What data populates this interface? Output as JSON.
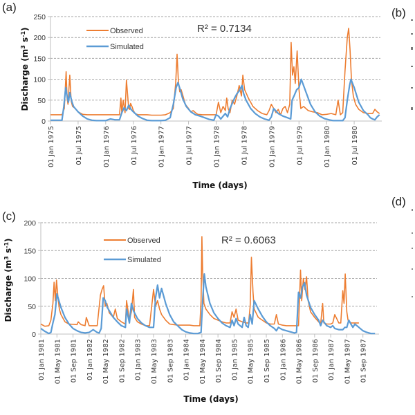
{
  "figure": {
    "panels": [
      "(a)",
      "(b)",
      "(c)",
      "(d)"
    ]
  },
  "chart_data": [
    {
      "id": "a",
      "type": "line",
      "panel_label": "(a)",
      "title": "",
      "xlabel": "Time (days)",
      "ylabel": "Discharge (m³ s⁻¹)",
      "ylabel_parts": {
        "main": "Discharge (m",
        "sup1": "3",
        "mid": " s",
        "sup2": "-1",
        "end": ")"
      },
      "ylim": [
        0,
        250
      ],
      "yticks": [
        0,
        50,
        100,
        150,
        200,
        250
      ],
      "xlim_month_index": [
        0,
        71.5
      ],
      "xtick_labels": [
        "01 Jan 1975",
        "01 Jul 1975",
        "01 Jan 1976",
        "01 Jul 1976",
        "01 Jan 1977",
        "01 Jul 1977",
        "01 Jan 1978",
        "01 Jul 1978",
        "01 Jan 1979",
        "01 Jul 1979",
        "01 Jan 1980",
        "01 Jul 1980"
      ],
      "xtick_month_index": [
        0,
        6,
        12,
        18,
        24,
        30,
        36,
        42,
        48,
        54,
        60,
        66
      ],
      "grid": true,
      "legend": {
        "placement": "top-left",
        "entries": [
          "Observed",
          "Simulated"
        ]
      },
      "annotation": "R² = 0.7134",
      "series": [
        {
          "name": "Observed",
          "color": "#ed7d31",
          "x_month": [
            0,
            2.5,
            3.0,
            3.4,
            3.6,
            3.8,
            4.2,
            4.5,
            4.8,
            5.4,
            6,
            7,
            8,
            9,
            10,
            12,
            13,
            14,
            15,
            15.3,
            15.5,
            15.8,
            16.2,
            16.5,
            17,
            17.2,
            17.4,
            17.7,
            18,
            18.4,
            19,
            20,
            21,
            22,
            24,
            25,
            26,
            26.7,
            27.2,
            27.5,
            27.8,
            28.1,
            28.4,
            28.8,
            29.3,
            30,
            30.5,
            31,
            31.5,
            32,
            33,
            34,
            35,
            36,
            36.5,
            37,
            37.5,
            38,
            38.3,
            38.6,
            39,
            39.5,
            40,
            40.5,
            41,
            41.5,
            41.8,
            42.2,
            43,
            44,
            45,
            46,
            47,
            47.5,
            48,
            48.5,
            49,
            49.5,
            50,
            50.5,
            51,
            51.5,
            52,
            52.3,
            52.6,
            52.9,
            53.2,
            53.6,
            54,
            54.4,
            55,
            56,
            57,
            58,
            59,
            60,
            61,
            62,
            62.5,
            63,
            63.5,
            64,
            64.5,
            64.8,
            65.1,
            65.4,
            65.8,
            66.3,
            67,
            68,
            69,
            70,
            70.5,
            71,
            71.5
          ],
          "values": [
            15,
            15,
            30,
            118,
            55,
            40,
            110,
            48,
            35,
            30,
            22,
            16,
            15,
            15,
            15,
            15,
            15,
            15,
            15,
            55,
            18,
            50,
            20,
            98,
            30,
            28,
            42,
            35,
            25,
            18,
            15,
            15,
            15,
            14,
            14,
            15,
            20,
            30,
            90,
            160,
            95,
            70,
            75,
            60,
            40,
            30,
            22,
            25,
            20,
            16,
            15,
            15,
            15,
            15,
            45,
            20,
            35,
            25,
            55,
            30,
            20,
            50,
            40,
            60,
            85,
            60,
            110,
            75,
            55,
            35,
            25,
            18,
            15,
            25,
            40,
            30,
            20,
            28,
            15,
            30,
            35,
            20,
            40,
            188,
            110,
            130,
            90,
            168,
            75,
            30,
            35,
            25,
            22,
            20,
            15,
            16,
            18,
            15,
            50,
            15,
            20,
            120,
            200,
            222,
            170,
            100,
            60,
            40,
            28,
            20,
            18,
            18,
            28,
            22,
            18
          ]
        },
        {
          "name": "Simulated",
          "color": "#5b9bd5",
          "x_month": [
            0,
            2.5,
            2.9,
            3.3,
            3.6,
            3.9,
            4.2,
            4.6,
            5,
            6,
            7,
            8,
            9,
            10,
            11,
            12,
            13,
            14,
            15,
            15.5,
            16,
            16.5,
            17,
            17.5,
            18,
            19,
            20,
            21,
            22,
            24,
            25,
            26,
            26.7,
            27.3,
            27.7,
            28.2,
            28.7,
            29.5,
            30.5,
            31.5,
            32.5,
            33.5,
            34.5,
            35.5,
            36,
            36.5,
            37,
            38,
            38.5,
            39,
            40,
            40.5,
            41,
            41.6,
            42,
            42.5,
            43.5,
            44.5,
            45.5,
            46.5,
            47.5,
            48,
            48.5,
            49.5,
            50.5,
            51.5,
            52.2,
            52.5,
            53,
            53.5,
            54,
            54.5,
            55.5,
            56.5,
            57.5,
            58.5,
            59.5,
            60.5,
            61.5,
            62.5,
            63.5,
            64,
            64.5,
            65,
            65.3,
            66,
            67,
            68,
            69,
            69.5,
            70,
            70.5,
            71,
            71.5
          ],
          "values": [
            2,
            2,
            35,
            80,
            60,
            45,
            68,
            48,
            35,
            22,
            12,
            5,
            2,
            1,
            1,
            1,
            5,
            3,
            3,
            20,
            32,
            25,
            38,
            28,
            22,
            12,
            6,
            2,
            1,
            1,
            2,
            8,
            40,
            80,
            92,
            75,
            55,
            35,
            22,
            15,
            12,
            8,
            4,
            2,
            15,
            12,
            5,
            18,
            10,
            30,
            55,
            65,
            72,
            85,
            65,
            50,
            30,
            18,
            10,
            5,
            2,
            10,
            30,
            18,
            12,
            8,
            5,
            50,
            62,
            75,
            80,
            100,
            70,
            40,
            22,
            12,
            6,
            3,
            1,
            1,
            1,
            8,
            50,
            85,
            100,
            80,
            45,
            25,
            15,
            8,
            5,
            3,
            10,
            15,
            10,
            12
          ]
        }
      ]
    },
    {
      "id": "c",
      "type": "line",
      "panel_label": "(c)",
      "title": "",
      "xlabel": "Time (days)",
      "ylabel": "Discharge (m³ s⁻¹)",
      "ylabel_parts": {
        "main": "Discharge (m",
        "sup1": "3",
        "mid": " s",
        "sup2": "-1",
        "end": ")"
      },
      "ylim": [
        0,
        200
      ],
      "yticks": [
        0,
        50,
        100,
        150,
        200
      ],
      "xlim_month_index": [
        0,
        84
      ],
      "xtick_labels": [
        "01 Jan 1981",
        "01 May 1981",
        "01 Sep 1981",
        "01 Jan 1982",
        "01 May 1982",
        "01 Sep 1982",
        "01 Jan 1983",
        "01 May 1983",
        "01 Sep 1983",
        "01 Jan 1984",
        "01 May 1984",
        "01 Sep 1984",
        "01 Jan 1985",
        "01 May 1985",
        "01 Sep 1985",
        "01 Jan 1986",
        "01 May 1986",
        "01 Sep 1986",
        "01 Jan 1987",
        "01 May 1987",
        "01 Sep 1987"
      ],
      "xtick_month_index": [
        0,
        4,
        8,
        12,
        16,
        20,
        24,
        28,
        32,
        36,
        40,
        44,
        48,
        52,
        56,
        60,
        64,
        68,
        72,
        76,
        80
      ],
      "grid": true,
      "legend": {
        "placement": "top-left",
        "entries": [
          "Observed",
          "Simulated"
        ]
      },
      "annotation": "R² = 0.6063",
      "series": [
        {
          "name": "Observed",
          "color": "#ed7d31",
          "x_month": [
            0,
            1,
            2,
            2.5,
            3.0,
            3.3,
            3.6,
            3.9,
            4.2,
            4.6,
            5,
            6,
            7,
            9,
            9.3,
            10,
            11,
            11.3,
            12,
            14,
            14.8,
            15.2,
            15.6,
            16,
            16.4,
            17,
            18,
            18.5,
            19,
            20,
            21,
            21.3,
            22,
            22.5,
            23,
            23.3,
            24,
            25,
            26,
            27,
            28,
            28.5,
            29,
            29.5,
            30,
            31,
            32,
            33,
            34,
            35,
            36,
            37,
            38,
            39.5,
            39.8,
            40,
            40.2,
            40.5,
            41,
            42,
            43,
            44,
            45,
            46,
            47,
            47.5,
            48,
            48.5,
            49,
            50,
            51,
            51.3,
            51.6,
            52,
            52.3,
            52.7,
            53,
            54,
            55,
            56,
            57,
            58,
            58.5,
            59,
            60,
            61,
            62,
            63,
            64,
            64.5,
            64.8,
            65.2,
            65.6,
            66,
            66.4,
            67,
            68,
            69,
            69.5,
            70,
            70.3,
            71,
            72,
            72.5,
            73,
            74,
            74.5,
            75,
            75.3,
            75.6,
            76,
            76.3,
            77,
            78,
            79
          ],
          "values": [
            18,
            14,
            15,
            25,
            55,
            93,
            60,
            97,
            70,
            45,
            35,
            22,
            18,
            17,
            22,
            17,
            15,
            30,
            15,
            15,
            70,
            80,
            87,
            50,
            55,
            38,
            30,
            45,
            28,
            22,
            18,
            60,
            25,
            40,
            80,
            30,
            22,
            18,
            15,
            15,
            80,
            50,
            60,
            45,
            35,
            25,
            18,
            17,
            16,
            16,
            16,
            16,
            15,
            15,
            60,
            175,
            110,
            55,
            45,
            35,
            28,
            25,
            22,
            20,
            20,
            40,
            30,
            45,
            25,
            22,
            20,
            20,
            20,
            50,
            138,
            75,
            45,
            30,
            25,
            20,
            18,
            18,
            35,
            18,
            16,
            15,
            15,
            15,
            15,
            115,
            60,
            100,
            80,
            103,
            60,
            40,
            30,
            22,
            18,
            55,
            20,
            18,
            18,
            20,
            35,
            20,
            20,
            78,
            55,
            108,
            40,
            25,
            20,
            20,
            20,
            20
          ]
        },
        {
          "name": "Simulated",
          "color": "#5b9bd5",
          "x_month": [
            0,
            1,
            2,
            2.5,
            3,
            3.5,
            4,
            4.5,
            5,
            6,
            7,
            8,
            9,
            10,
            11,
            12,
            13,
            14,
            14.5,
            15,
            15.5,
            16,
            16.5,
            17,
            18,
            19,
            20,
            21,
            21.3,
            22,
            22.5,
            23,
            23.5,
            24,
            25,
            26,
            27,
            28,
            28.5,
            29,
            29.5,
            30,
            31,
            32,
            33,
            34,
            35,
            36,
            37,
            38,
            39,
            39.8,
            40.2,
            40.6,
            41,
            42,
            43,
            44,
            45,
            46,
            47,
            47.5,
            48,
            48.5,
            49,
            50,
            50.5,
            51,
            51.5,
            52,
            52.5,
            53,
            54,
            55,
            56,
            57,
            58,
            58.5,
            59,
            60,
            61,
            62,
            63,
            63.5,
            64,
            64.5,
            65,
            65.5,
            66,
            67,
            68,
            69,
            69.5,
            70,
            71,
            72,
            72.5,
            73,
            74,
            75,
            75.5,
            76,
            76.5,
            77,
            77.5,
            78,
            79,
            80,
            81,
            82,
            83
          ],
          "values": [
            10,
            5,
            1,
            3,
            20,
            35,
            72,
            60,
            48,
            30,
            18,
            10,
            6,
            3,
            2,
            3,
            8,
            3,
            2,
            10,
            65,
            60,
            48,
            42,
            30,
            22,
            15,
            12,
            45,
            20,
            55,
            42,
            35,
            28,
            20,
            15,
            12,
            12,
            65,
            88,
            65,
            82,
            55,
            35,
            22,
            15,
            8,
            4,
            2,
            1,
            1,
            3,
            60,
            108,
            85,
            55,
            38,
            28,
            20,
            15,
            12,
            25,
            15,
            28,
            18,
            12,
            30,
            15,
            12,
            35,
            18,
            60,
            45,
            32,
            22,
            15,
            10,
            6,
            12,
            8,
            6,
            4,
            2,
            3,
            75,
            65,
            85,
            92,
            70,
            48,
            35,
            25,
            15,
            25,
            15,
            12,
            15,
            10,
            8,
            8,
            12,
            12,
            25,
            18,
            12,
            18,
            12,
            6,
            3,
            1,
            1,
            1
          ]
        }
      ]
    }
  ]
}
